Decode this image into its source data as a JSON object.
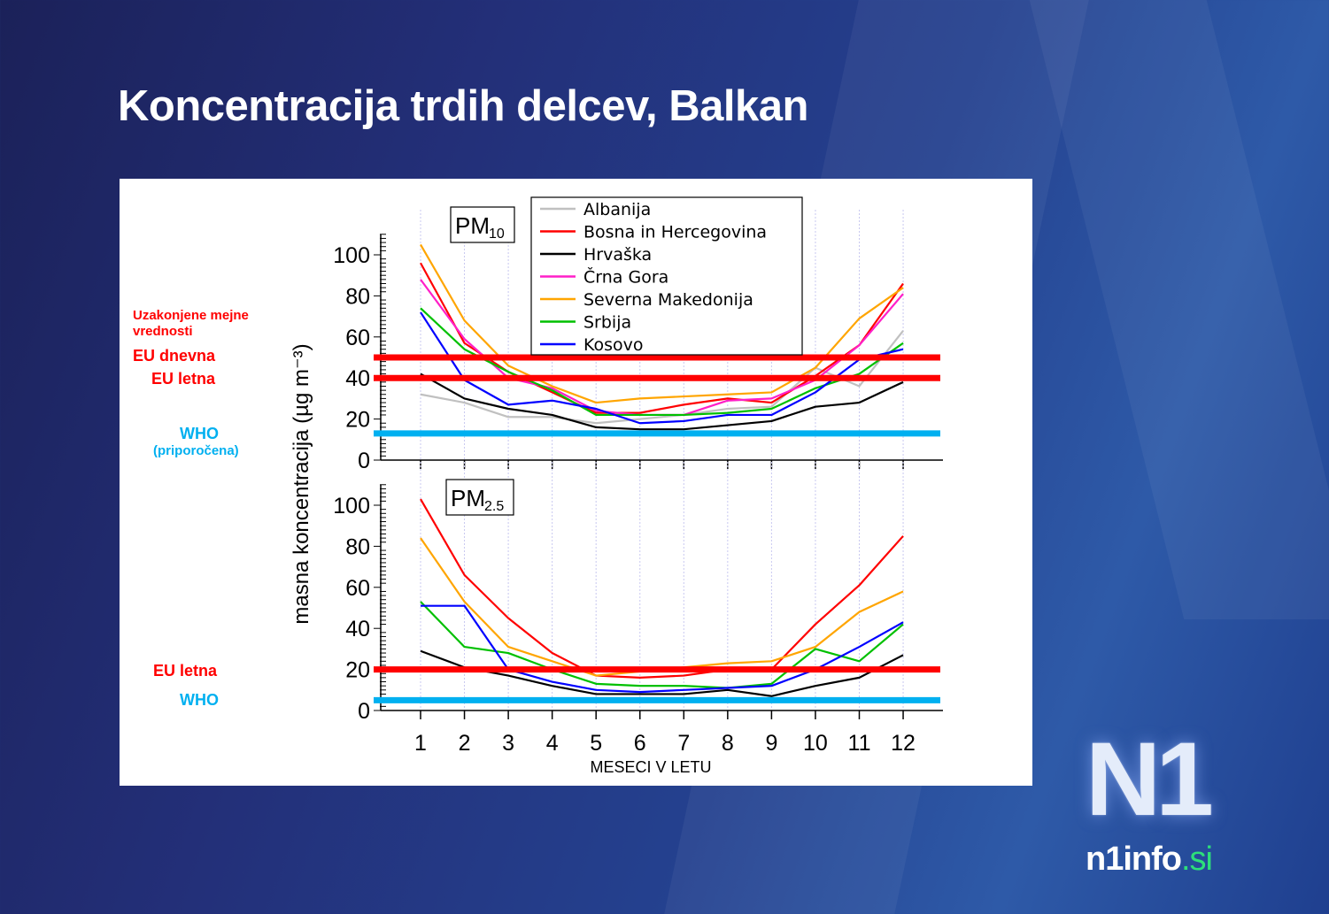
{
  "page": {
    "title": "Koncentracija trdih delcev, Balkan",
    "side_labels": {
      "legal_limits": "Uzakonjene mejne vrednosti",
      "legal_limits_line1": "Uzakonjene mejne",
      "legal_limits_line2": "vrednosti",
      "eu_daily": "EU dnevna",
      "eu_annual": "EU letna",
      "who": "WHO",
      "who_recommended": "(priporočena)",
      "eu_annual_pm25": "EU letna",
      "who_pm25": "WHO"
    },
    "logo": {
      "main": "N1",
      "domain": "n1info",
      "tld": ".si"
    }
  },
  "colors": {
    "Albanija": "#c0c0c0",
    "Bosna in Hercegovina": "#ff0000",
    "Hrvaška": "#000000",
    "Črna Gora": "#ff1fc8",
    "Severna Makedonija": "#ffa500",
    "Srbija": "#00c000",
    "Kosovo": "#0000ff",
    "eu_line": "#ff0000",
    "who_line": "#00b0f0"
  },
  "chart_data": [
    {
      "type": "line",
      "title": "PM10",
      "title_main": "PM",
      "title_sub": "10",
      "xlabel": "MESECI V LETU",
      "ylabel": "masna koncentracija  (µg m⁻³)",
      "x": [
        1,
        2,
        3,
        4,
        5,
        6,
        7,
        8,
        9,
        10,
        11,
        12
      ],
      "ylim": [
        0,
        110
      ],
      "yticks": [
        0,
        20,
        40,
        60,
        80,
        100
      ],
      "legend": [
        "Albanija",
        "Bosna in Hercegovina",
        "Hrvaška",
        "Črna Gora",
        "Severna Makedonija",
        "Srbija",
        "Kosovo"
      ],
      "series": [
        {
          "name": "Albanija",
          "values": [
            32,
            28,
            21,
            21,
            18,
            20,
            22,
            25,
            26,
            45,
            36,
            63
          ]
        },
        {
          "name": "Bosna in Hercegovina",
          "values": [
            96,
            57,
            43,
            33,
            23,
            23,
            27,
            30,
            28,
            41,
            56,
            86
          ]
        },
        {
          "name": "Hrvaška",
          "values": [
            42,
            30,
            25,
            22,
            16,
            15,
            15,
            17,
            19,
            26,
            28,
            38
          ]
        },
        {
          "name": "Črna Gora",
          "values": [
            88,
            59,
            40,
            35,
            24,
            22,
            22,
            29,
            30,
            39,
            56,
            81
          ]
        },
        {
          "name": "Severna Makedonija",
          "values": [
            105,
            68,
            46,
            36,
            28,
            30,
            31,
            32,
            33,
            45,
            69,
            84
          ]
        },
        {
          "name": "Srbija",
          "values": [
            74,
            54,
            43,
            34,
            22,
            22,
            22,
            23,
            25,
            35,
            42,
            57
          ]
        },
        {
          "name": "Kosovo",
          "values": [
            72,
            39,
            27,
            29,
            25,
            18,
            19,
            22,
            22,
            33,
            49,
            54
          ]
        }
      ],
      "reference_lines": [
        {
          "name": "EU dnevna",
          "value": 50,
          "color": "#ff0000"
        },
        {
          "name": "EU letna",
          "value": 40,
          "color": "#ff0000"
        },
        {
          "name": "WHO (priporočena)",
          "value": 13,
          "color": "#00b0f0"
        }
      ]
    },
    {
      "type": "line",
      "title": "PM2.5",
      "title_main": "PM",
      "title_sub": "2.5",
      "xlabel": "MESECI V LETU",
      "ylabel": "masna koncentracija  (µg m⁻³)",
      "x": [
        1,
        2,
        3,
        4,
        5,
        6,
        7,
        8,
        9,
        10,
        11,
        12
      ],
      "xticks": [
        "1",
        "2",
        "3",
        "4",
        "5",
        "6",
        "7",
        "8",
        "9",
        "10",
        "11",
        "12"
      ],
      "ylim": [
        0,
        110
      ],
      "yticks": [
        0,
        20,
        40,
        60,
        80,
        100
      ],
      "series": [
        {
          "name": "Bosna in Hercegovina",
          "values": [
            103,
            66,
            45,
            28,
            17,
            16,
            17,
            20,
            20,
            42,
            61,
            85
          ]
        },
        {
          "name": "Hrvaška",
          "values": [
            29,
            21,
            17,
            12,
            8,
            8,
            8,
            10,
            7,
            12,
            16,
            27
          ]
        },
        {
          "name": "Severna Makedonija",
          "values": [
            84,
            53,
            31,
            24,
            17,
            19,
            21,
            23,
            24,
            31,
            48,
            58
          ]
        },
        {
          "name": "Srbija",
          "values": [
            53,
            31,
            28,
            20,
            13,
            12,
            12,
            11,
            13,
            30,
            24,
            42
          ]
        },
        {
          "name": "Kosovo",
          "values": [
            51,
            51,
            20,
            14,
            10,
            9,
            10,
            11,
            12,
            20,
            31,
            43
          ]
        }
      ],
      "reference_lines": [
        {
          "name": "EU letna",
          "value": 20,
          "color": "#ff0000"
        },
        {
          "name": "WHO",
          "value": 5,
          "color": "#00b0f0"
        }
      ]
    }
  ]
}
